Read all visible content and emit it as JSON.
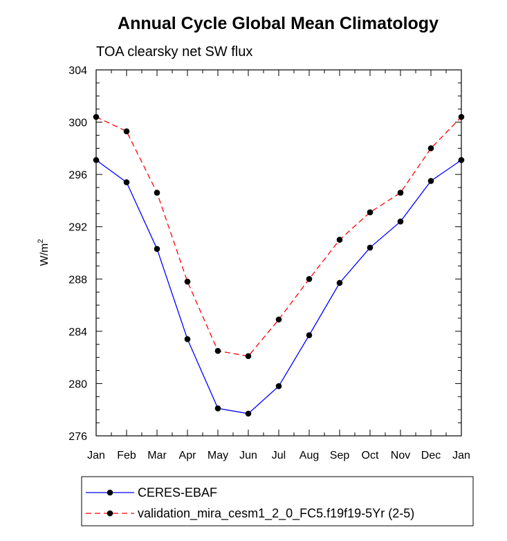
{
  "chart_data": {
    "type": "line",
    "title": "Annual Cycle Global Mean Climatology",
    "subtitle": "TOA clearsky net SW flux",
    "ylabel": "W/m",
    "ylabel_superscript": "2",
    "xlabel": "",
    "categories": [
      "Jan",
      "Feb",
      "Mar",
      "Apr",
      "May",
      "Jun",
      "Jul",
      "Aug",
      "Sep",
      "Oct",
      "Nov",
      "Dec",
      "Jan"
    ],
    "ylim": [
      276,
      304
    ],
    "yticks": [
      "276",
      "280",
      "284",
      "288",
      "292",
      "296",
      "300",
      "304"
    ],
    "grid": false,
    "legend_position": "bottom",
    "series": [
      {
        "name": "CERES-EBAF",
        "color": "#0000ff",
        "dash": "solid",
        "marker": "filled-circle",
        "values": [
          297.1,
          295.4,
          290.3,
          283.4,
          278.1,
          277.7,
          279.8,
          283.7,
          287.7,
          290.4,
          292.4,
          295.5,
          297.1
        ]
      },
      {
        "name": "validation_mira_cesm1_2_0_FC5.f19f19-5Yr (2-5)",
        "color": "#ff0000",
        "dash": "dashed",
        "marker": "filled-circle",
        "values": [
          300.4,
          299.3,
          294.6,
          287.8,
          282.5,
          282.1,
          284.9,
          288.0,
          291.0,
          293.1,
          294.6,
          298.0,
          300.4
        ]
      }
    ]
  }
}
